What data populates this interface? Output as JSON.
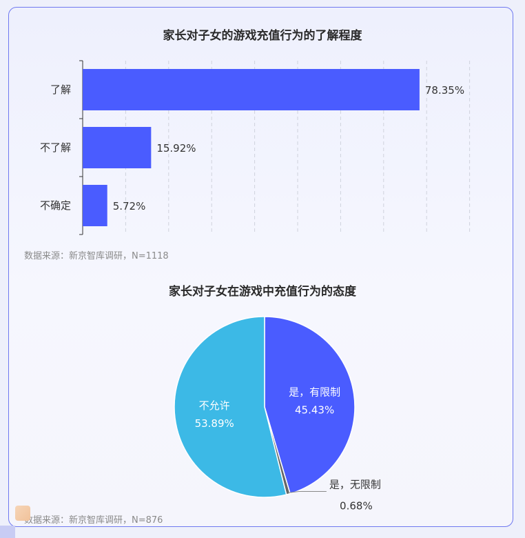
{
  "chart_data": [
    {
      "type": "bar",
      "orientation": "horizontal",
      "title": "家长对子女的游戏充值行为的了解程度",
      "categories": [
        "了解",
        "不了解",
        "不确定"
      ],
      "values": [
        78.35,
        15.92,
        5.72
      ],
      "value_labels": [
        "78.35%",
        "15.92%",
        "5.72%"
      ],
      "xlim": [
        0,
        90
      ],
      "grid": "vertical dashed",
      "color": "#4a5cff",
      "source": "数据来源：新京智库调研，N=1118"
    },
    {
      "type": "pie",
      "title": "家长对子女在游戏中充值行为的态度",
      "slices": [
        {
          "label": "是，有限制",
          "value": 45.43,
          "value_label": "45.43%",
          "color": "#4a5cff"
        },
        {
          "label": "是，无限制",
          "value": 0.68,
          "value_label": "0.68%",
          "color": "#666666"
        },
        {
          "label": "不允许",
          "value": 53.89,
          "value_label": "53.89%",
          "color": "#3cb9e6"
        }
      ],
      "source": "数据来源：新京智库调研，N=876"
    }
  ]
}
